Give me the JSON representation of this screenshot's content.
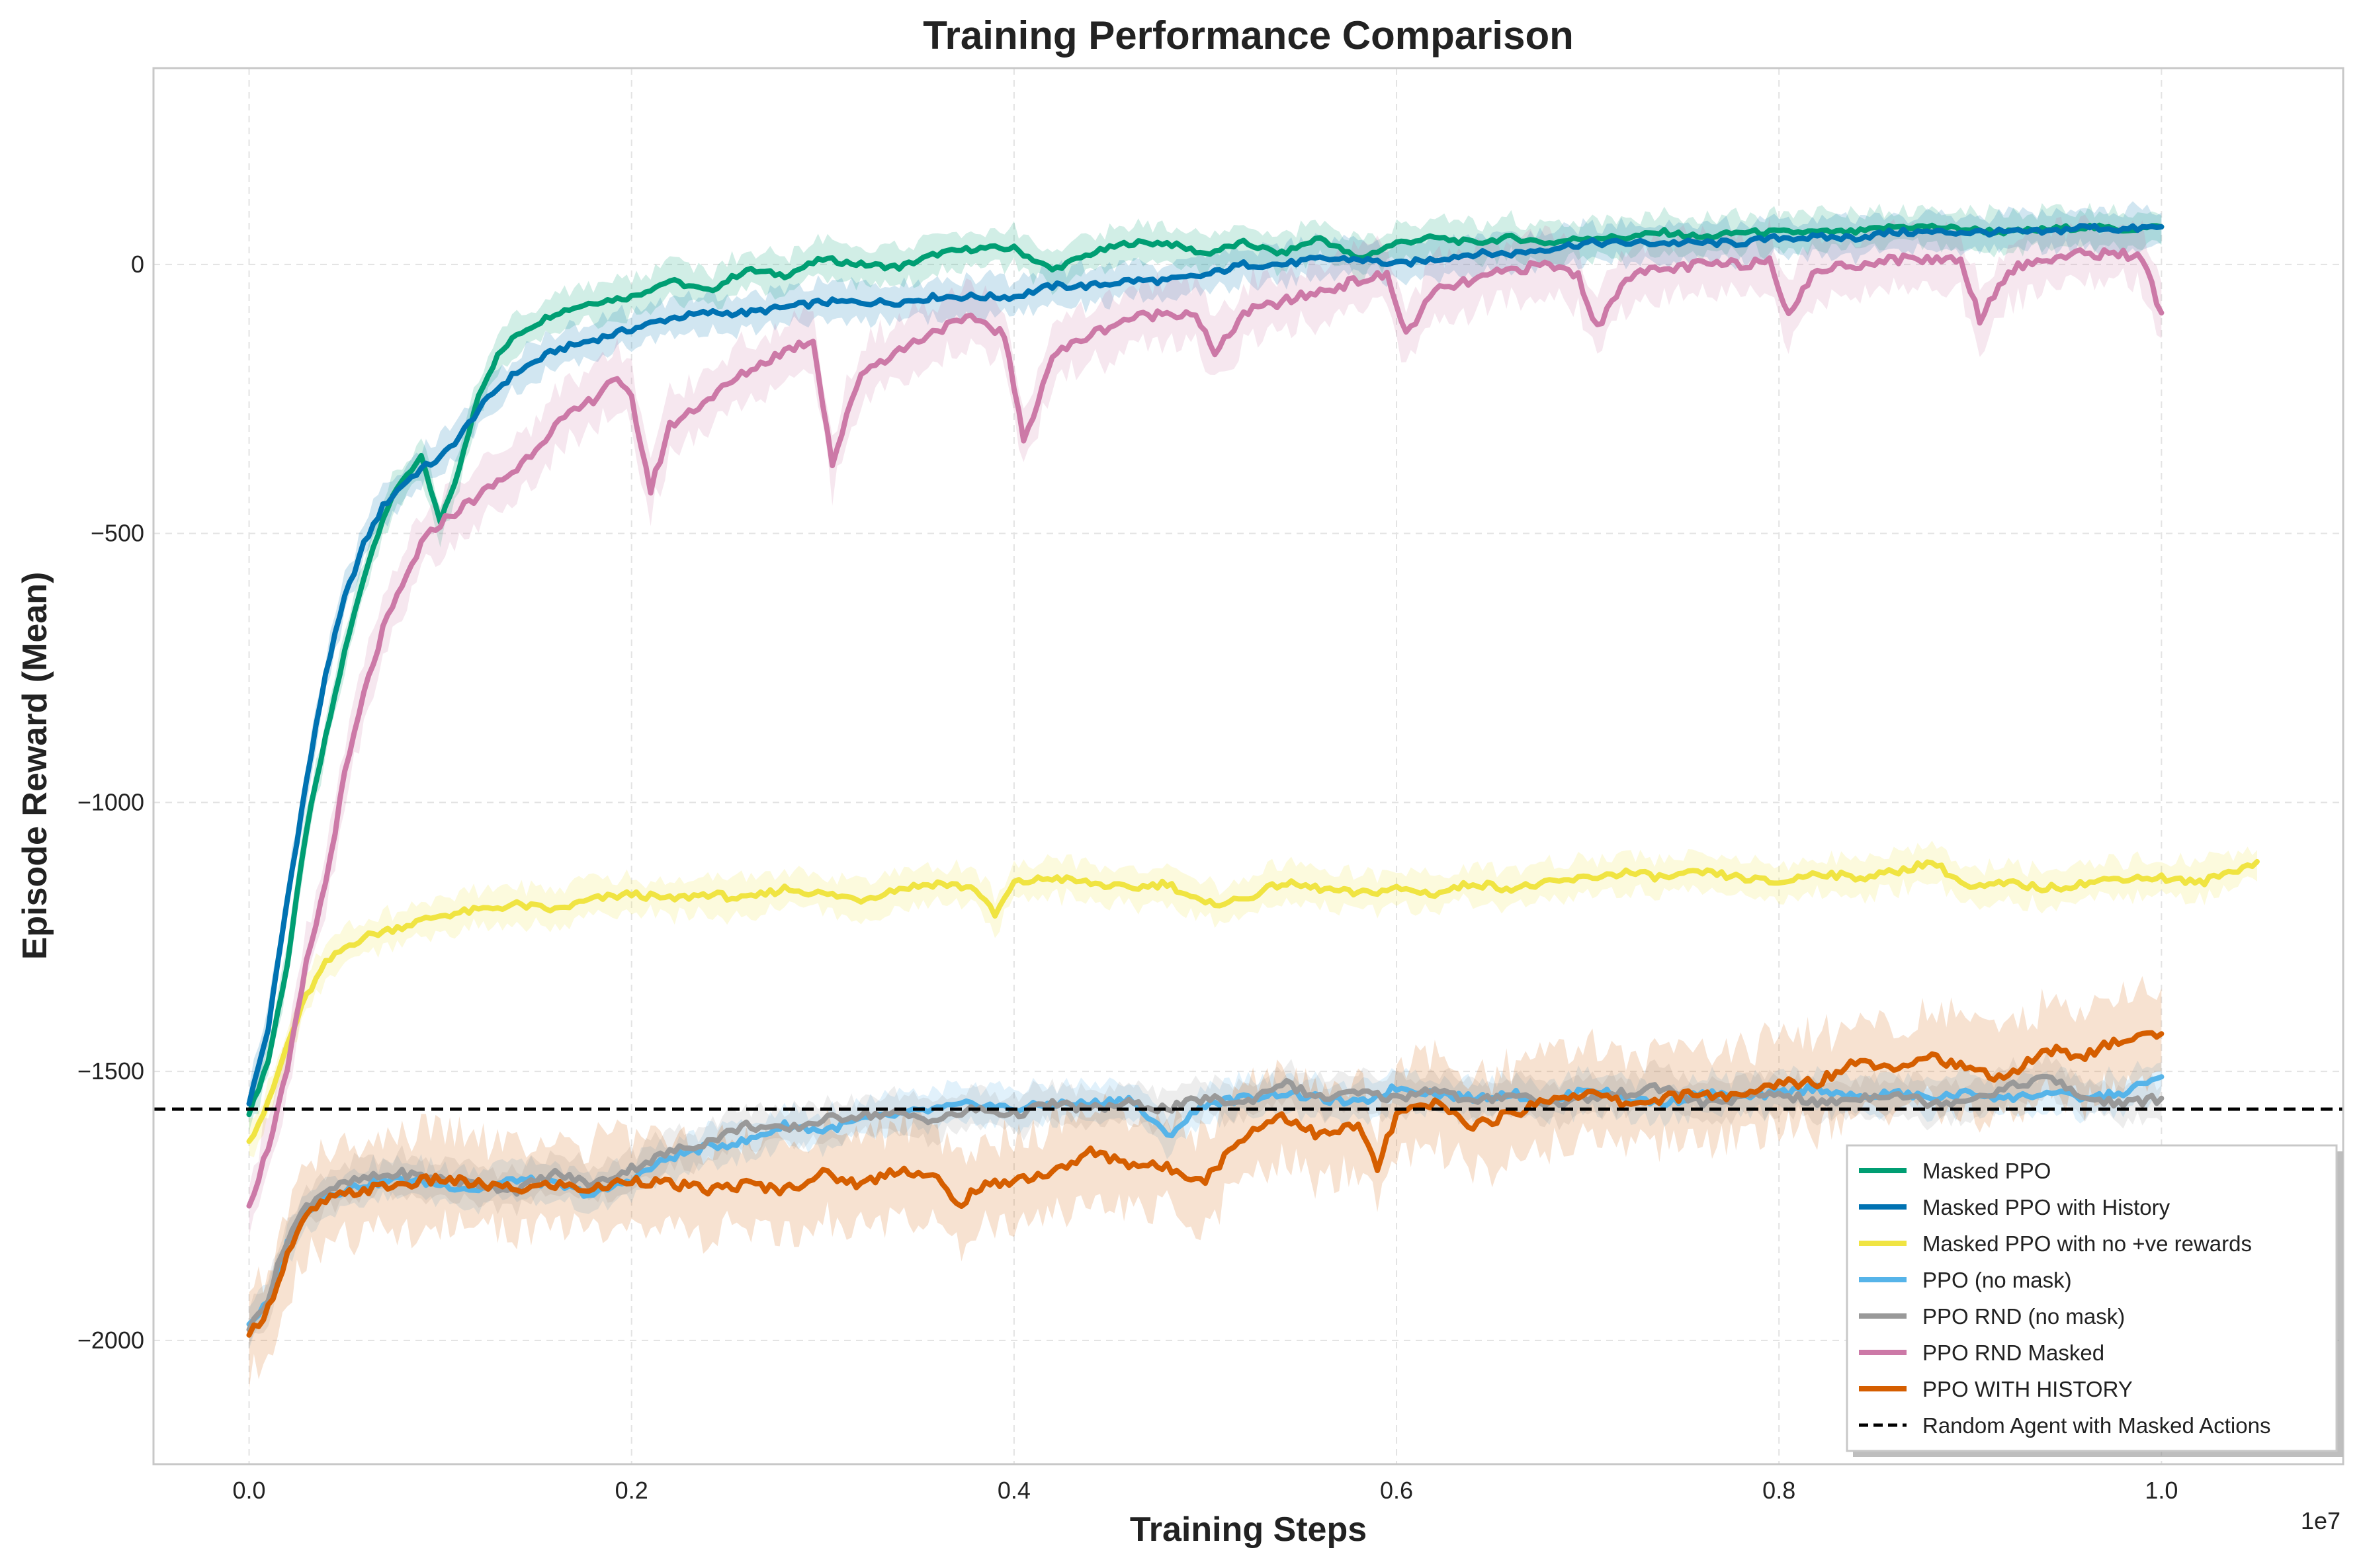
{
  "chart_data": {
    "type": "line",
    "title": "Training Performance Comparison",
    "xlabel": "Training Steps",
    "ylabel": "Episode Reward (Mean)",
    "x_offset_label": "1e7",
    "x_scale": 10000000,
    "xlim": [
      -500000,
      10950000
    ],
    "ylim": [
      -2230,
      365
    ],
    "xticks": [
      0,
      2000000,
      4000000,
      6000000,
      8000000,
      10000000
    ],
    "xtick_labels": [
      "0.0",
      "0.2",
      "0.4",
      "0.6",
      "0.8",
      "1.0"
    ],
    "yticks": [
      0,
      -500,
      -1000,
      -1500,
      -2000
    ],
    "ytick_labels": [
      "0",
      "−500",
      "−1000",
      "−1500",
      "−2000"
    ],
    "grid": true,
    "legend_position": "lower-right",
    "series": [
      {
        "name": "Masked PPO",
        "color": "#009e73",
        "x": [
          0,
          100000,
          200000,
          300000,
          400000,
          500000,
          600000,
          700000,
          800000,
          900000,
          1000000,
          1100000,
          1200000,
          1300000,
          1400000,
          1600000,
          1800000,
          2000000,
          2200000,
          2400000,
          2600000,
          2800000,
          3000000,
          3200000,
          3400000,
          3600000,
          3800000,
          4000000,
          4200000,
          4400000,
          4600000,
          4800000,
          5000000,
          5200000,
          5400000,
          5600000,
          5800000,
          6000000,
          6200000,
          6400000,
          6600000,
          6800000,
          7000000,
          7200000,
          7400000,
          7600000,
          7800000,
          8000000,
          8200000,
          8400000,
          8600000,
          8800000,
          9000000,
          9200000,
          9400000,
          9600000,
          9800000,
          10000000
        ],
        "values": [
          -1580,
          -1480,
          -1300,
          -1050,
          -880,
          -720,
          -580,
          -470,
          -400,
          -360,
          -480,
          -380,
          -240,
          -170,
          -130,
          -90,
          -70,
          -60,
          -30,
          -50,
          -10,
          -20,
          10,
          0,
          -5,
          20,
          30,
          30,
          -10,
          20,
          40,
          40,
          20,
          40,
          20,
          50,
          10,
          40,
          50,
          40,
          50,
          40,
          50,
          50,
          60,
          50,
          60,
          60,
          60,
          60,
          70,
          70,
          65,
          60,
          65,
          70,
          65,
          70
        ]
      },
      {
        "name": "Masked PPO with History",
        "color": "#0072b2",
        "x": [
          0,
          100000,
          200000,
          300000,
          400000,
          500000,
          600000,
          700000,
          800000,
          900000,
          1000000,
          1100000,
          1200000,
          1300000,
          1400000,
          1600000,
          1800000,
          2000000,
          2200000,
          2400000,
          2600000,
          2800000,
          3000000,
          3200000,
          3400000,
          3600000,
          3800000,
          4000000,
          4200000,
          4400000,
          4600000,
          4800000,
          5000000,
          5200000,
          5400000,
          5600000,
          5800000,
          6000000,
          6200000,
          6400000,
          6600000,
          6800000,
          7000000,
          7200000,
          7400000,
          7600000,
          7800000,
          8000000,
          8200000,
          8400000,
          8600000,
          8800000,
          9000000,
          9200000,
          9400000,
          9600000,
          9800000,
          10000000
        ],
        "values": [
          -1560,
          -1420,
          -1180,
          -960,
          -760,
          -620,
          -520,
          -450,
          -410,
          -380,
          -360,
          -320,
          -270,
          -230,
          -200,
          -160,
          -140,
          -120,
          -100,
          -90,
          -90,
          -80,
          -70,
          -70,
          -70,
          -60,
          -60,
          -60,
          -40,
          -40,
          -30,
          -30,
          -20,
          0,
          0,
          10,
          10,
          0,
          10,
          20,
          20,
          30,
          40,
          40,
          40,
          40,
          40,
          50,
          50,
          50,
          60,
          60,
          60,
          60,
          60,
          70,
          65,
          70
        ]
      },
      {
        "name": "Masked PPO with no +ve rewards",
        "color": "#f0e442",
        "x": [
          0,
          100000,
          200000,
          300000,
          400000,
          500000,
          600000,
          800000,
          1000000,
          1200000,
          1400000,
          1600000,
          1800000,
          2000000,
          2200000,
          2400000,
          2600000,
          2800000,
          3000000,
          3200000,
          3400000,
          3600000,
          3800000,
          3900000,
          4000000,
          4200000,
          4400000,
          4600000,
          4800000,
          5000000,
          5200000,
          5400000,
          5600000,
          5800000,
          6000000,
          6200000,
          6400000,
          6600000,
          6800000,
          7000000,
          7200000,
          7400000,
          7600000,
          7800000,
          8000000,
          8200000,
          8400000,
          8600000,
          8800000,
          9000000,
          9200000,
          9400000,
          9600000,
          9800000,
          10000000,
          10200000,
          10500000
        ],
        "values": [
          -1630,
          -1560,
          -1450,
          -1360,
          -1300,
          -1270,
          -1250,
          -1230,
          -1210,
          -1200,
          -1190,
          -1200,
          -1180,
          -1170,
          -1180,
          -1170,
          -1180,
          -1160,
          -1170,
          -1180,
          -1160,
          -1150,
          -1160,
          -1210,
          -1150,
          -1140,
          -1150,
          -1160,
          -1150,
          -1190,
          -1180,
          -1150,
          -1160,
          -1170,
          -1160,
          -1170,
          -1150,
          -1160,
          -1150,
          -1140,
          -1130,
          -1140,
          -1130,
          -1140,
          -1150,
          -1130,
          -1140,
          -1130,
          -1110,
          -1160,
          -1150,
          -1160,
          -1150,
          -1140,
          -1140,
          -1150,
          -1110
        ]
      },
      {
        "name": "PPO (no mask)",
        "color": "#56b4e9",
        "x": [
          0,
          100000,
          200000,
          300000,
          400000,
          600000,
          800000,
          1000000,
          1200000,
          1400000,
          1600000,
          1800000,
          2000000,
          2200000,
          2400000,
          2600000,
          2800000,
          3000000,
          3200000,
          3400000,
          3600000,
          3800000,
          4000000,
          4200000,
          4400000,
          4600000,
          4800000,
          5000000,
          5200000,
          5400000,
          5600000,
          5800000,
          6000000,
          6200000,
          6400000,
          6600000,
          6800000,
          7000000,
          7200000,
          7400000,
          7600000,
          7800000,
          8000000,
          8200000,
          8400000,
          8600000,
          8800000,
          9000000,
          9200000,
          9400000,
          9600000,
          9800000,
          10000000
        ],
        "values": [
          -1970,
          -1930,
          -1820,
          -1760,
          -1730,
          -1710,
          -1700,
          -1710,
          -1720,
          -1700,
          -1710,
          -1730,
          -1700,
          -1660,
          -1640,
          -1630,
          -1600,
          -1610,
          -1590,
          -1580,
          -1570,
          -1560,
          -1570,
          -1560,
          -1560,
          -1550,
          -1620,
          -1560,
          -1550,
          -1540,
          -1550,
          -1560,
          -1530,
          -1540,
          -1550,
          -1540,
          -1560,
          -1530,
          -1550,
          -1560,
          -1540,
          -1550,
          -1540,
          -1530,
          -1550,
          -1540,
          -1550,
          -1540,
          -1550,
          -1540,
          -1550,
          -1540,
          -1510
        ]
      },
      {
        "name": "PPO RND (no mask)",
        "color": "#999999",
        "x": [
          0,
          100000,
          200000,
          300000,
          400000,
          600000,
          800000,
          1000000,
          1200000,
          1400000,
          1600000,
          1800000,
          2000000,
          2200000,
          2400000,
          2600000,
          2800000,
          3000000,
          3200000,
          3400000,
          3600000,
          3800000,
          4000000,
          4200000,
          4400000,
          4600000,
          4800000,
          5000000,
          5200000,
          5400000,
          5600000,
          5800000,
          6000000,
          6200000,
          6400000,
          6600000,
          6800000,
          7000000,
          7200000,
          7400000,
          7600000,
          7800000,
          8000000,
          8200000,
          8400000,
          8600000,
          8800000,
          9000000,
          9200000,
          9400000,
          9600000,
          9800000,
          10000000
        ],
        "values": [
          -1980,
          -1920,
          -1810,
          -1750,
          -1720,
          -1700,
          -1690,
          -1700,
          -1710,
          -1720,
          -1690,
          -1710,
          -1680,
          -1650,
          -1630,
          -1600,
          -1610,
          -1590,
          -1580,
          -1580,
          -1590,
          -1570,
          -1580,
          -1560,
          -1570,
          -1560,
          -1570,
          -1550,
          -1560,
          -1520,
          -1550,
          -1540,
          -1550,
          -1530,
          -1560,
          -1540,
          -1560,
          -1550,
          -1540,
          -1530,
          -1560,
          -1550,
          -1540,
          -1560,
          -1550,
          -1540,
          -1560,
          -1550,
          -1530,
          -1510,
          -1550,
          -1560,
          -1550
        ]
      },
      {
        "name": "PPO RND Masked",
        "color": "#cc79a7",
        "x": [
          0,
          100000,
          200000,
          300000,
          400000,
          500000,
          600000,
          700000,
          800000,
          900000,
          1000000,
          1200000,
          1400000,
          1600000,
          1800000,
          1900000,
          2000000,
          2100000,
          2200000,
          2400000,
          2600000,
          2800000,
          2950000,
          3050000,
          3200000,
          3400000,
          3600000,
          3800000,
          3950000,
          4050000,
          4200000,
          4400000,
          4600000,
          4800000,
          4950000,
          5050000,
          5200000,
          5400000,
          5600000,
          5800000,
          5950000,
          6050000,
          6200000,
          6400000,
          6600000,
          6800000,
          6950000,
          7050000,
          7200000,
          7400000,
          7600000,
          7800000,
          7950000,
          8050000,
          8200000,
          8400000,
          8600000,
          8800000,
          8950000,
          9050000,
          9200000,
          9400000,
          9600000,
          9800000,
          9900000,
          10000000
        ],
        "values": [
          -1750,
          -1640,
          -1500,
          -1300,
          -1150,
          -950,
          -800,
          -680,
          -600,
          -520,
          -480,
          -430,
          -380,
          -300,
          -250,
          -210,
          -250,
          -420,
          -300,
          -250,
          -200,
          -160,
          -140,
          -370,
          -200,
          -160,
          -120,
          -100,
          -130,
          -330,
          -170,
          -130,
          -100,
          -90,
          -90,
          -170,
          -90,
          -70,
          -50,
          -30,
          -20,
          -130,
          -50,
          -30,
          -10,
          0,
          -20,
          -120,
          -20,
          -10,
          0,
          0,
          10,
          -90,
          -10,
          0,
          10,
          10,
          10,
          -100,
          -10,
          10,
          20,
          20,
          10,
          -90
        ]
      },
      {
        "name": "PPO WITH HISTORY",
        "color": "#d55e00",
        "x": [
          0,
          100000,
          200000,
          300000,
          400000,
          600000,
          800000,
          1000000,
          1200000,
          1400000,
          1600000,
          1800000,
          2000000,
          2200000,
          2400000,
          2600000,
          2800000,
          3000000,
          3200000,
          3400000,
          3600000,
          3700000,
          3800000,
          4000000,
          4200000,
          4400000,
          4600000,
          4800000,
          5000000,
          5200000,
          5400000,
          5600000,
          5800000,
          5900000,
          6000000,
          6200000,
          6400000,
          6600000,
          6800000,
          7000000,
          7200000,
          7400000,
          7600000,
          7800000,
          8000000,
          8200000,
          8400000,
          8600000,
          8800000,
          9000000,
          9200000,
          9400000,
          9600000,
          9800000,
          10000000
        ],
        "values": [
          -1990,
          -1940,
          -1840,
          -1770,
          -1740,
          -1720,
          -1710,
          -1700,
          -1710,
          -1720,
          -1710,
          -1720,
          -1700,
          -1710,
          -1720,
          -1710,
          -1720,
          -1690,
          -1710,
          -1680,
          -1700,
          -1750,
          -1720,
          -1700,
          -1690,
          -1650,
          -1670,
          -1680,
          -1700,
          -1620,
          -1580,
          -1620,
          -1600,
          -1680,
          -1580,
          -1560,
          -1600,
          -1580,
          -1550,
          -1540,
          -1560,
          -1550,
          -1540,
          -1550,
          -1520,
          -1520,
          -1480,
          -1490,
          -1470,
          -1500,
          -1510,
          -1460,
          -1470,
          -1440,
          -1430
        ]
      }
    ],
    "reference_line": {
      "name": "Random Agent with Masked Actions",
      "color": "#000000",
      "y": -1570
    }
  }
}
